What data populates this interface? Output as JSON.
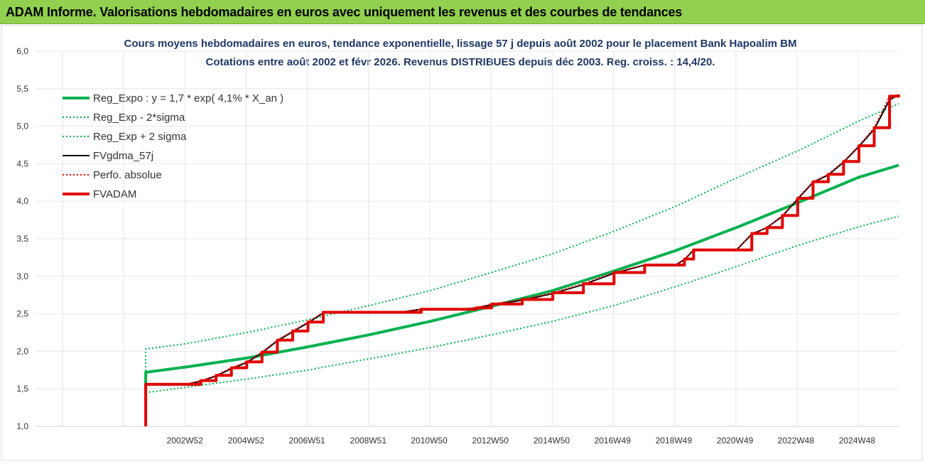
{
  "header": {
    "title": "ADAM Informe. Valorisations hebdomadaires en euros avec uniquement les revenus et des courbes de tendances"
  },
  "chart_data": {
    "type": "line",
    "title": "Cours moyens hebdomadaires en euros, tendance exponentielle, lissage 57 j depuis août 2002 pour le placement Bank Hapoalim BM",
    "subtitle": "Cotations entre août 2002 et févr 2026. Revenus DISTRIBUES depuis déc 2003. Reg. croiss. : 14,4/20.",
    "ylim": [
      1.0,
      6.0
    ],
    "yticks": [
      "1,0",
      "1,5",
      "2,0",
      "2,5",
      "3,0",
      "3,5",
      "4,0",
      "4,5",
      "5,0",
      "5,5",
      "6,0"
    ],
    "xlim": [
      1998.1,
      2026.3
    ],
    "xticks": [
      {
        "label": "2002W52",
        "x": 2002.98
      },
      {
        "label": "2004W52",
        "x": 2004.98
      },
      {
        "label": "2006W51",
        "x": 2006.97
      },
      {
        "label": "2008W51",
        "x": 2008.97
      },
      {
        "label": "2010W50",
        "x": 2010.96
      },
      {
        "label": "2012W50",
        "x": 2012.96
      },
      {
        "label": "2014W50",
        "x": 2014.96
      },
      {
        "label": "2016W49",
        "x": 2016.95
      },
      {
        "label": "2018W49",
        "x": 2018.95
      },
      {
        "label": "2020W49",
        "x": 2020.95
      },
      {
        "label": "2022W48",
        "x": 2022.94
      },
      {
        "label": "2024W48",
        "x": 2024.94
      }
    ],
    "grid": true,
    "legend_position": "top-left",
    "series": [
      {
        "name": "Reg_Expo : y = 1,7 * exp( 4,1% *  X_an )",
        "color": "#00b050",
        "style": "thick",
        "x": [
          2001.7,
          2003,
          2005,
          2007,
          2009,
          2011,
          2013,
          2015,
          2017,
          2019,
          2021,
          2023,
          2025,
          2026.3
        ],
        "y": [
          1.72,
          1.79,
          1.91,
          2.06,
          2.22,
          2.4,
          2.6,
          2.81,
          3.07,
          3.34,
          3.65,
          3.98,
          4.32,
          4.48
        ]
      },
      {
        "name": "Reg_Exp - 2*sigma",
        "color": "#00b050",
        "style": "dotted",
        "x": [
          2001.7,
          2003,
          2005,
          2007,
          2009,
          2011,
          2013,
          2015,
          2017,
          2019,
          2021,
          2023,
          2025,
          2026.3
        ],
        "y": [
          1.45,
          1.52,
          1.63,
          1.75,
          1.9,
          2.05,
          2.22,
          2.4,
          2.61,
          2.86,
          3.13,
          3.41,
          3.66,
          3.8
        ]
      },
      {
        "name": "Reg_Exp + 2 sigma",
        "color": "#00b050",
        "style": "dotted",
        "x": [
          2001.7,
          2003,
          2005,
          2007,
          2009,
          2011,
          2013,
          2015,
          2017,
          2019,
          2021,
          2023,
          2025,
          2026.3
        ],
        "y": [
          2.03,
          2.1,
          2.25,
          2.42,
          2.61,
          2.81,
          3.05,
          3.3,
          3.6,
          3.93,
          4.31,
          4.67,
          5.07,
          5.3
        ]
      },
      {
        "name": "FVgdma_57j",
        "color": "#000000",
        "style": "normal",
        "x": [
          2001.7,
          2003.0,
          2003.5,
          2004.0,
          2004.5,
          2005.0,
          2005.5,
          2006.0,
          2006.5,
          2007.0,
          2007.5,
          2008.0,
          2010.0,
          2010.7,
          2012.0,
          2012.5,
          2013.0,
          2014.0,
          2015.0,
          2016.0,
          2017.0,
          2018.0,
          2019.0,
          2019.3,
          2019.6,
          2021.0,
          2021.5,
          2022.0,
          2022.5,
          2023.0,
          2023.5,
          2024.0,
          2024.5,
          2025.0,
          2025.5,
          2026.0,
          2026.3
        ],
        "y": [
          1.56,
          1.56,
          1.6,
          1.67,
          1.77,
          1.85,
          1.98,
          2.14,
          2.26,
          2.38,
          2.51,
          2.52,
          2.52,
          2.56,
          2.56,
          2.58,
          2.62,
          2.68,
          2.77,
          2.89,
          3.04,
          3.15,
          3.15,
          3.22,
          3.35,
          3.35,
          3.56,
          3.65,
          3.8,
          4.03,
          4.25,
          4.35,
          4.52,
          4.73,
          4.96,
          5.35,
          5.42
        ]
      },
      {
        "name": "Perfo. absolue",
        "color": "#ff0000",
        "style": "dotted",
        "x": [
          2001.7,
          2003.0,
          2003.5,
          2004.0,
          2004.5,
          2005.0,
          2005.5,
          2006.0,
          2006.5,
          2007.0,
          2007.5,
          2008.0,
          2010.0,
          2010.7,
          2012.0,
          2012.5,
          2013.0,
          2014.0,
          2015.0,
          2016.0,
          2017.0,
          2018.0,
          2019.0,
          2019.3,
          2019.6,
          2021.0,
          2021.5,
          2022.0,
          2022.5,
          2023.0,
          2023.5,
          2024.0,
          2024.5,
          2025.0,
          2025.5,
          2026.0,
          2026.3
        ],
        "y": [
          1.56,
          1.56,
          1.61,
          1.68,
          1.78,
          1.86,
          1.99,
          2.15,
          2.27,
          2.39,
          2.52,
          2.52,
          2.52,
          2.56,
          2.56,
          2.58,
          2.63,
          2.69,
          2.78,
          2.9,
          3.05,
          3.15,
          3.15,
          3.23,
          3.35,
          3.35,
          3.57,
          3.65,
          3.81,
          4.04,
          4.26,
          4.36,
          4.53,
          4.74,
          4.98,
          5.4,
          5.42
        ]
      },
      {
        "name": "FVADAM",
        "color": "#e00000",
        "style": "thick",
        "x": [
          2001.7,
          2001.7,
          2003.0,
          2003.5,
          2004.0,
          2004.5,
          2005.0,
          2005.5,
          2006.0,
          2006.5,
          2007.0,
          2007.5,
          2008.0,
          2010.0,
          2010.7,
          2012.0,
          2012.5,
          2013.0,
          2014.0,
          2015.0,
          2016.0,
          2017.0,
          2018.0,
          2019.0,
          2019.3,
          2019.6,
          2021.0,
          2021.5,
          2022.0,
          2022.5,
          2023.0,
          2023.5,
          2024.0,
          2024.5,
          2025.0,
          2025.5,
          2026.0,
          2026.3
        ],
        "y": [
          1.0,
          1.56,
          1.56,
          1.61,
          1.68,
          1.78,
          1.86,
          1.99,
          2.15,
          2.27,
          2.39,
          2.52,
          2.52,
          2.52,
          2.56,
          2.56,
          2.58,
          2.63,
          2.69,
          2.78,
          2.9,
          3.05,
          3.15,
          3.15,
          3.23,
          3.35,
          3.35,
          3.57,
          3.65,
          3.81,
          4.04,
          4.26,
          4.36,
          4.53,
          4.74,
          4.98,
          5.4,
          5.42
        ]
      }
    ]
  }
}
